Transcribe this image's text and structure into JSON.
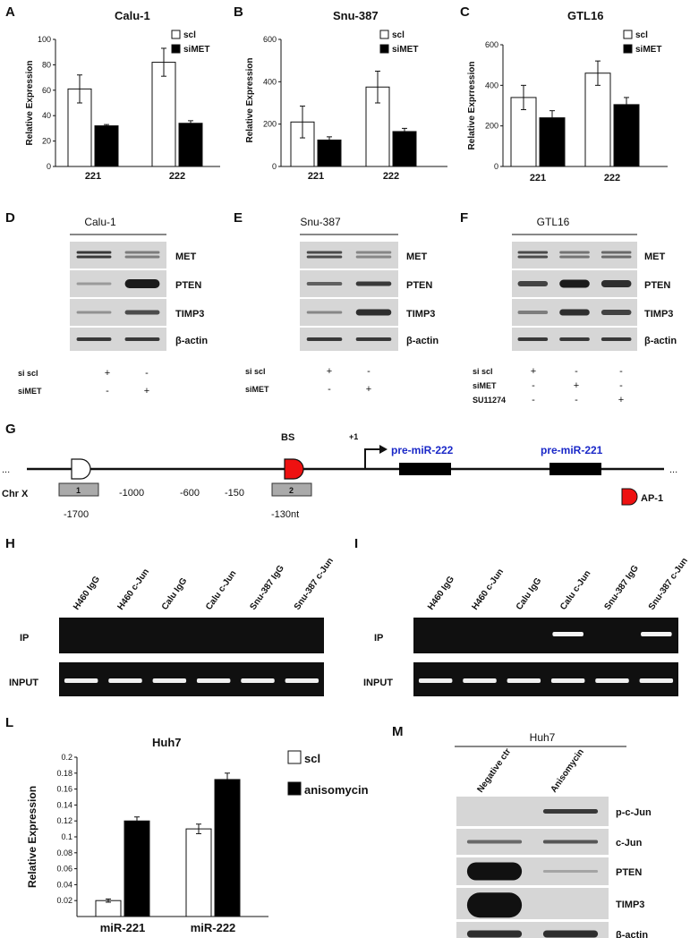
{
  "panels": {
    "A": "A",
    "B": "B",
    "C": "C",
    "D": "D",
    "E": "E",
    "F": "F",
    "G": "G",
    "H": "H",
    "I": "I",
    "L": "L",
    "M": "M"
  },
  "legend": {
    "scl": "scl",
    "siMET": "siMET",
    "anisomycin": "anisomycin"
  },
  "ylabel_main": "Relative Expression",
  "ylabel_gtl16": "Relative Exprression",
  "chart_data": [
    {
      "type": "bar",
      "title": "Calu-1",
      "ylabel": "Relative Expression",
      "categories": [
        "221",
        "222"
      ],
      "ylim": [
        0,
        100
      ],
      "yticks": [
        "0",
        "20",
        "40",
        "60",
        "80",
        "100"
      ],
      "series": [
        {
          "name": "scl",
          "values": [
            61,
            82
          ],
          "errors": [
            11,
            11
          ],
          "color": "#ffffff"
        },
        {
          "name": "siMET",
          "values": [
            32,
            34
          ],
          "errors": [
            1,
            2
          ],
          "color": "#000000"
        }
      ]
    },
    {
      "type": "bar",
      "title": "Snu-387",
      "ylabel": "Relative Expression",
      "categories": [
        "221",
        "222"
      ],
      "ylim": [
        0,
        600
      ],
      "yticks": [
        "0",
        "200",
        "400",
        "600"
      ],
      "series": [
        {
          "name": "scl",
          "values": [
            210,
            375
          ],
          "errors": [
            75,
            75
          ],
          "color": "#ffffff"
        },
        {
          "name": "siMET",
          "values": [
            125,
            165
          ],
          "errors": [
            15,
            15
          ],
          "color": "#000000"
        }
      ]
    },
    {
      "type": "bar",
      "title": "GTL16",
      "ylabel": "Relative Exprression",
      "categories": [
        "221",
        "222"
      ],
      "ylim": [
        0,
        600
      ],
      "yticks": [
        "0",
        "200",
        "400",
        "600"
      ],
      "series": [
        {
          "name": "scl",
          "values": [
            340,
            460
          ],
          "errors": [
            60,
            60
          ],
          "color": "#ffffff"
        },
        {
          "name": "siMET",
          "values": [
            240,
            305
          ],
          "errors": [
            35,
            35
          ],
          "color": "#000000"
        }
      ]
    },
    {
      "type": "bar",
      "title": "Huh7",
      "ylabel": "Relative Expression",
      "categories": [
        "miR-221",
        "miR-222"
      ],
      "ylim": [
        0,
        0.2
      ],
      "yticks": [
        "0.02",
        "0.04",
        "0.06",
        "0.08",
        "0.1",
        "0.12",
        "0.14",
        "0.16",
        "0.18",
        "0.2"
      ],
      "series": [
        {
          "name": "scl",
          "values": [
            0.02,
            0.11
          ],
          "errors": [
            0.002,
            0.006
          ],
          "color": "#ffffff"
        },
        {
          "name": "anisomycin",
          "values": [
            0.12,
            0.172
          ],
          "errors": [
            0.005,
            0.008
          ],
          "color": "#000000"
        }
      ]
    }
  ],
  "westerns": {
    "D": {
      "title": "Calu-1",
      "bands": [
        "MET",
        "PTEN",
        "TIMP3",
        "β-actin"
      ],
      "rows": [
        {
          "label": "si scl",
          "signs": [
            "+",
            "-"
          ]
        },
        {
          "label": "siMET",
          "signs": [
            "-",
            "+"
          ]
        }
      ]
    },
    "E": {
      "title": "Snu-387",
      "bands": [
        "MET",
        "PTEN",
        "TIMP3",
        "β-actin"
      ],
      "rows": [
        {
          "label": "si scl",
          "signs": [
            "+",
            "-"
          ]
        },
        {
          "label": "siMET",
          "signs": [
            "-",
            "+"
          ]
        }
      ]
    },
    "F": {
      "title": "GTL16",
      "bands": [
        "MET",
        "PTEN",
        "TIMP3",
        "β-actin"
      ],
      "rows": [
        {
          "label": "si scl",
          "signs": [
            "+",
            "-",
            "-"
          ]
        },
        {
          "label": "siMET",
          "signs": [
            "-",
            "+",
            "-"
          ]
        },
        {
          "label": "SU11274",
          "signs": [
            "-",
            "-",
            "+"
          ]
        }
      ]
    },
    "M": {
      "title": "Huh7",
      "lanes": [
        "Negative ctr",
        "Anisomycin"
      ],
      "bands": [
        "p-c-Jun",
        "c-Jun",
        "PTEN",
        "TIMP3",
        "β-actin"
      ]
    }
  },
  "genome": {
    "ellipsis_left": "...",
    "ellipsis_right": "...",
    "bs": "BS",
    "tss": "+1",
    "pre222": "pre-miR-222",
    "pre221": "pre-miR-221",
    "chr": "Chr X",
    "box1": "1",
    "box2": "2",
    "positions": [
      "-1000",
      "-600",
      "-150"
    ],
    "pos1": "-1700",
    "pos2": "-130nt",
    "ap1": "AP-1"
  },
  "chip": {
    "lanes": [
      "H460 IgG",
      "H460 c-Jun",
      "Calu IgG",
      "Calu c-Jun",
      "Snu-387 IgG",
      "Snu-387 c-Jun"
    ],
    "ip": "IP",
    "input": "INPUT"
  }
}
